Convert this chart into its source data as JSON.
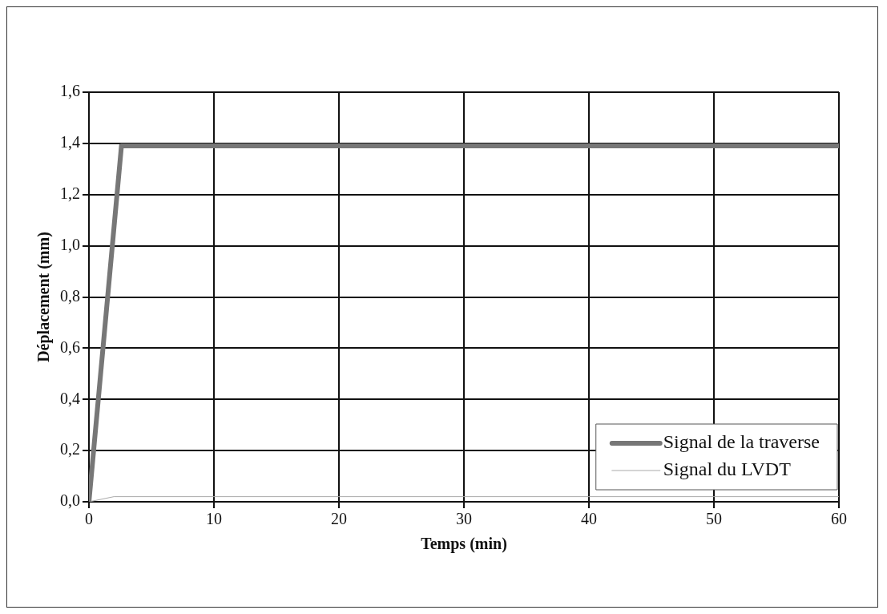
{
  "chart_data": {
    "type": "line",
    "xlabel": "Temps (min)",
    "ylabel": "Déplacement (mm)",
    "xlim": [
      0,
      60
    ],
    "xticks": [
      0,
      10,
      20,
      30,
      40,
      50,
      60
    ],
    "ylim": [
      0,
      1.6
    ],
    "yticks": [
      {
        "value": 0,
        "label": "0,0"
      },
      {
        "value": 0.2,
        "label": "0,2"
      },
      {
        "value": 0.4,
        "label": "0,4"
      },
      {
        "value": 0.6,
        "label": "0,6"
      },
      {
        "value": 0.8,
        "label": "0,8"
      },
      {
        "value": 1.0,
        "label": "1,0"
      },
      {
        "value": 1.2,
        "label": "1,2"
      },
      {
        "value": 1.4,
        "label": "1,4"
      },
      {
        "value": 1.6,
        "label": "1,6"
      }
    ],
    "grid": true,
    "legend": "bottom right",
    "marker": "none",
    "series": [
      {
        "name": "Signal de la traverse",
        "color": "#777777",
        "x": [
          0,
          2.6,
          60
        ],
        "values": [
          0,
          1.39,
          1.39
        ]
      },
      {
        "name": "Signal du LVDT",
        "color": "#aaaaaa",
        "x": [
          0,
          2,
          60
        ],
        "values": [
          0,
          0.02,
          0.02
        ]
      }
    ]
  }
}
